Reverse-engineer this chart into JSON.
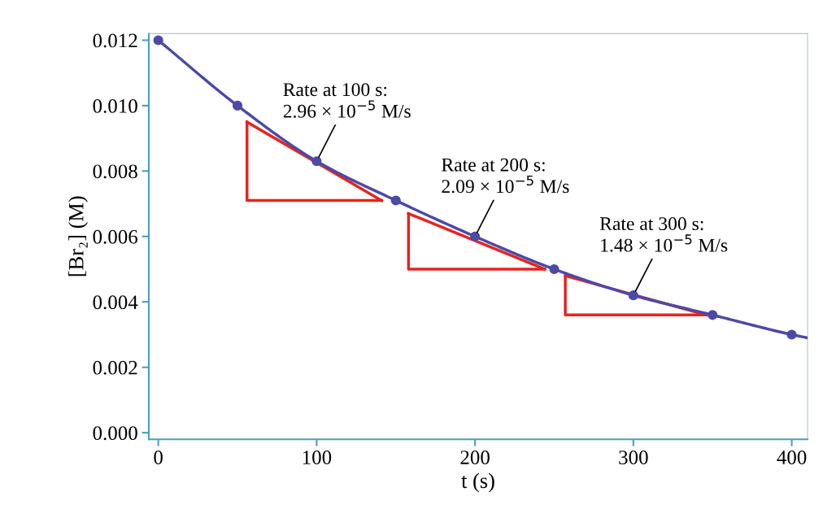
{
  "chart_data": {
    "type": "line",
    "xlabel": "t (s)",
    "ylabel": "[Br₂] (M)",
    "xlim": [
      -6,
      410
    ],
    "ylim": [
      -0.0002,
      0.0122
    ],
    "xticks": [
      0,
      100,
      200,
      300,
      400
    ],
    "yticks": [
      {
        "value": 0,
        "label": "0.000"
      },
      {
        "value": 0.002,
        "label": "0.002"
      },
      {
        "value": 0.004,
        "label": "0.004"
      },
      {
        "value": 0.006,
        "label": "0.006"
      },
      {
        "value": 0.008,
        "label": "0.008"
      },
      {
        "value": 0.01,
        "label": "0.010"
      },
      {
        "value": 0.012,
        "label": "0.012"
      }
    ],
    "grid": false,
    "legend": false,
    "series": [
      {
        "color": "#4b4aa8",
        "marker": "none",
        "x": [
          0,
          50,
          100,
          150,
          200,
          250,
          300,
          350,
          400,
          410
        ],
        "values": [
          0.012,
          0.01,
          0.0083,
          0.0071,
          0.006,
          0.005,
          0.0042,
          0.0036,
          0.003,
          0.0029
        ]
      },
      {
        "type": "scatter",
        "color": "#4b4aa8",
        "marker": "circle",
        "x": [
          0,
          50,
          100,
          150,
          200,
          250,
          300,
          350,
          400
        ],
        "values": [
          0.012,
          0.01,
          0.0083,
          0.0071,
          0.006,
          0.005,
          0.0042,
          0.0036,
          0.003
        ]
      },
      {
        "type": "line",
        "color": "#e8231e",
        "marker": "none",
        "x": [
          56,
          141
        ],
        "values": [
          0.0095,
          0.0071
        ]
      },
      {
        "type": "line",
        "color": "#e8231e",
        "marker": "none",
        "x": [
          56,
          56,
          141
        ],
        "values": [
          0.0095,
          0.0071,
          0.0071
        ]
      },
      {
        "type": "line",
        "color": "#e8231e",
        "marker": "none",
        "x": [
          158,
          244
        ],
        "values": [
          0.0067,
          0.005
        ]
      },
      {
        "type": "line",
        "color": "#e8231e",
        "marker": "none",
        "x": [
          158,
          158,
          244
        ],
        "values": [
          0.0067,
          0.005,
          0.005
        ]
      },
      {
        "type": "line",
        "color": "#e8231e",
        "marker": "none",
        "x": [
          257,
          346
        ],
        "values": [
          0.0048,
          0.0036
        ]
      },
      {
        "type": "line",
        "color": "#e8231e",
        "marker": "none",
        "x": [
          257,
          257,
          346
        ],
        "values": [
          0.0048,
          0.0036,
          0.0036
        ]
      }
    ],
    "annotations": [
      {
        "text": "Rate at 100 s:\n2.96 × 10$^{−5}$ M/s",
        "x": 100,
        "y": 0.0083
      },
      {
        "text": "Rate at 200 s:\n2.09 × 10$^{−5}$ M/s",
        "x": 200,
        "y": 0.006
      },
      {
        "text": "Rate at 300 s:\n1.48 × 10$^{−5}$ M/s",
        "x": 300,
        "y": 0.0042
      }
    ]
  }
}
